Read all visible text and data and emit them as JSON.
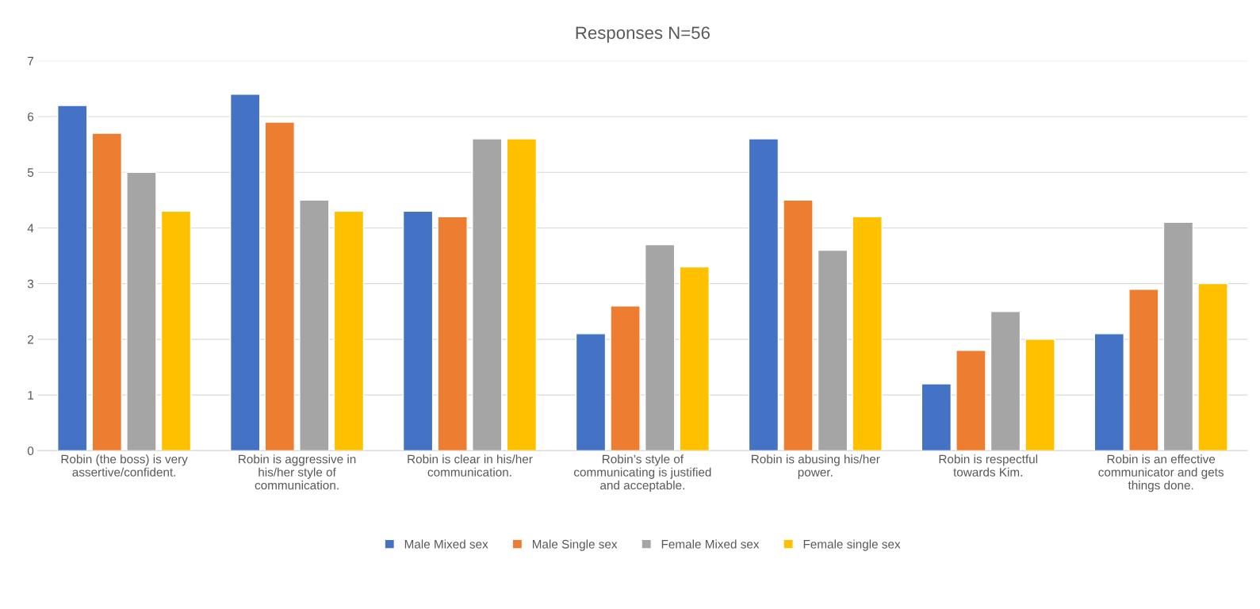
{
  "chart_data": {
    "type": "bar",
    "title": "Responses N=56",
    "categories": [
      "Robin (the boss) is very\nassertive/confident.",
      "Robin is aggressive in\nhis/her style of\ncommunication.",
      "Robin is clear in his/her\ncommunication.",
      "Robin’s style of\ncommunicating is justified\nand acceptable.",
      "Robin is abusing his/her\npower.",
      "Robin is respectful\ntowards Kim.",
      "Robin is an effective\ncommunicator and gets\nthings done."
    ],
    "series": [
      {
        "name": "Male Mixed sex",
        "color": "#4472c4",
        "values": [
          6.2,
          6.4,
          4.3,
          2.1,
          5.6,
          1.2,
          2.1
        ]
      },
      {
        "name": "Male Single sex",
        "color": "#ed7d31",
        "values": [
          5.7,
          5.9,
          4.2,
          2.6,
          4.5,
          1.8,
          2.9
        ]
      },
      {
        "name": "Female Mixed sex",
        "color": "#a5a5a5",
        "values": [
          5.0,
          4.5,
          5.6,
          3.7,
          3.6,
          2.5,
          4.1
        ]
      },
      {
        "name": "Female single sex",
        "color": "#ffc000",
        "values": [
          4.3,
          4.3,
          5.6,
          3.3,
          4.2,
          2.0,
          3.0
        ]
      }
    ],
    "ylim": [
      0,
      7
    ],
    "yticks": [
      0,
      1,
      2,
      3,
      4,
      5,
      6,
      7
    ],
    "grid": "y",
    "legend": "bottom"
  }
}
